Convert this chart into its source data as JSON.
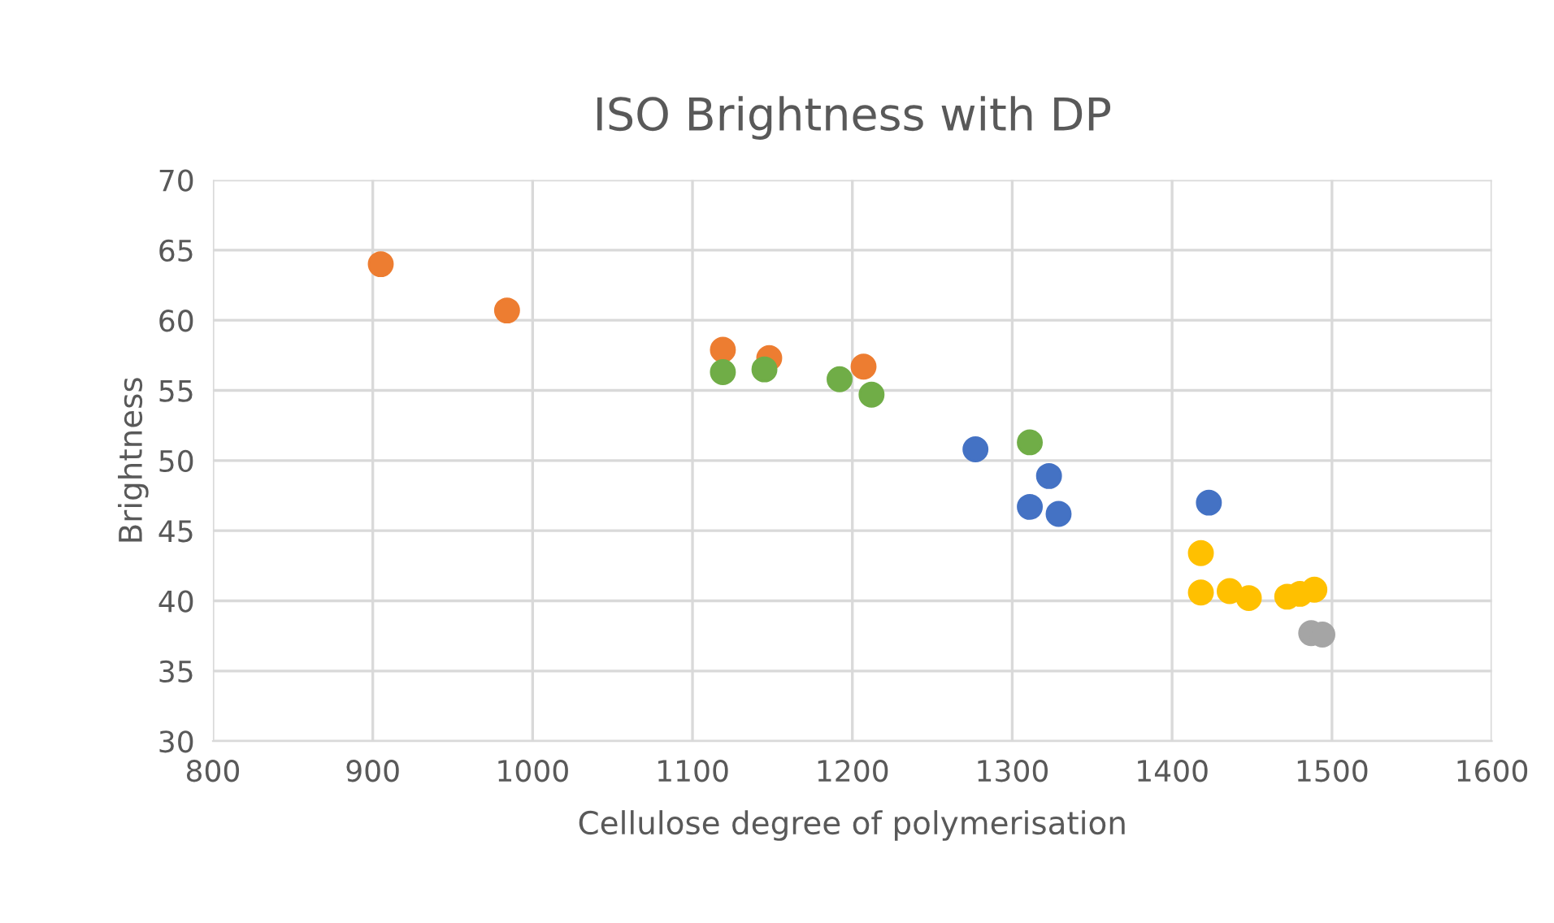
{
  "chart_data": {
    "type": "scatter",
    "title": "ISO Brightness with DP",
    "xlabel": "Cellulose degree of polymerisation",
    "ylabel": "Brightness",
    "xlim": [
      800,
      1600
    ],
    "xticks": [
      800,
      900,
      1000,
      1100,
      1200,
      1300,
      1400,
      1500,
      1600
    ],
    "ylim": [
      30,
      70
    ],
    "yticks": [
      30,
      35,
      40,
      45,
      50,
      55,
      60,
      65,
      70
    ],
    "grid": true,
    "marker": "circle",
    "legend": false,
    "series": [
      {
        "color": "#4472c4",
        "x": [
          1277,
          1311,
          1323,
          1329,
          1423
        ],
        "values": [
          50.8,
          46.7,
          48.9,
          46.2,
          47.0
        ]
      },
      {
        "color": "#ed7d31",
        "x": [
          905,
          984,
          1119,
          1148,
          1207
        ],
        "values": [
          64.0,
          60.7,
          57.9,
          57.3,
          56.7
        ]
      },
      {
        "color": "#a5a5a5",
        "x": [
          1487,
          1494
        ],
        "values": [
          37.7,
          37.6
        ]
      },
      {
        "color": "#ffc000",
        "x": [
          1418,
          1418,
          1436,
          1448,
          1472,
          1480,
          1489
        ],
        "values": [
          43.4,
          40.6,
          40.7,
          40.2,
          40.3,
          40.5,
          40.8
        ]
      },
      {
        "color": "#70ad47",
        "x": [
          1119,
          1145,
          1192,
          1212,
          1311
        ],
        "values": [
          56.3,
          56.5,
          55.8,
          54.7,
          51.3
        ]
      }
    ]
  }
}
